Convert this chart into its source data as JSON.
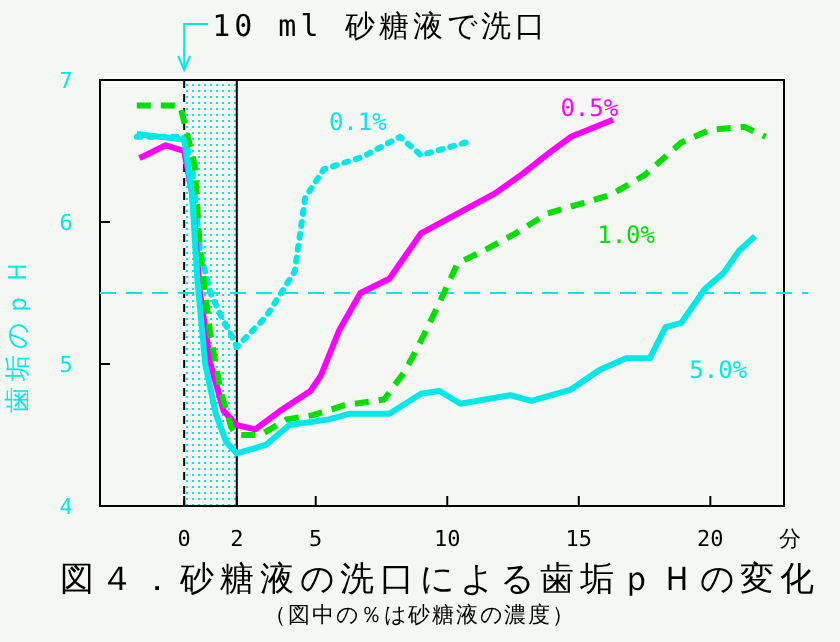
{
  "chart_data": {
    "type": "line",
    "title": "図４．砂糖液の洗口による歯垢ｐＨの変化",
    "subtitle": "（図中の％は砂糖液の濃度）",
    "xlabel": "分",
    "ylabel": "歯垢のｐＨ",
    "xlim": [
      -3.2,
      22.8
    ],
    "ylim": [
      4,
      7
    ],
    "xticks": [
      0,
      2,
      5,
      10,
      15,
      20
    ],
    "yticks": [
      4,
      5,
      6,
      7
    ],
    "grid": false,
    "annotations": [
      {
        "text": "10 ml 砂糖液で洗口",
        "x": 0,
        "y": 7
      }
    ],
    "bands": [
      {
        "axis": "x",
        "from": 0,
        "to": 2,
        "color": "#00e8e8"
      }
    ],
    "ref_lines": [
      {
        "axis": "x",
        "value": 0,
        "color": "#000000",
        "line_style": "dashed"
      },
      {
        "axis": "x",
        "value": 2,
        "color": "#000000",
        "line_style": "solid"
      },
      {
        "axis": "y",
        "value": 5.5,
        "color": "#00e8e8",
        "line_style": "dashed"
      }
    ],
    "series": [
      {
        "name": "0.1%",
        "color": "#00e8e8",
        "line_style": "dotted",
        "x": [
          -1.8,
          0,
          0.3,
          0.6,
          1.0,
          1.5,
          1.75,
          2,
          3.1,
          4.2,
          4.6,
          5.3,
          6.8,
          8.2,
          9.0,
          10.7
        ],
        "values": [
          6.6,
          6.6,
          6.4,
          5.8,
          5.5,
          5.3,
          5.22,
          5.12,
          5.33,
          5.65,
          6.17,
          6.37,
          6.46,
          6.6,
          6.47,
          6.56
        ]
      },
      {
        "name": "0.5%",
        "color": "#ff00ff",
        "line_style": "solid",
        "x": [
          -1.7,
          -0.7,
          0,
          0.3,
          0.6,
          1.0,
          1.5,
          2,
          2.7,
          3.65,
          4.8,
          5.2,
          5.9,
          6.7,
          7.8,
          9.0,
          10.9,
          11.8,
          12.8,
          13.9,
          14.7,
          16.3
        ],
        "values": [
          6.45,
          6.54,
          6.5,
          6.2,
          5.5,
          5.0,
          4.67,
          4.57,
          4.54,
          4.67,
          4.81,
          4.92,
          5.24,
          5.5,
          5.6,
          5.92,
          6.11,
          6.2,
          6.33,
          6.49,
          6.6,
          6.72
        ]
      },
      {
        "name": "1.0%",
        "color": "#00e000",
        "line_style": "dashed",
        "x": [
          -1.8,
          -0.15,
          0.4,
          0.6,
          1.0,
          1.4,
          1.8,
          2.0,
          2.9,
          3.9,
          4.9,
          6.1,
          7.6,
          8.4,
          9.1,
          9.7,
          10.4,
          11.3,
          12.6,
          13.8,
          16.2,
          17.5,
          18.9,
          20.0,
          21.3,
          22.1
        ],
        "values": [
          6.82,
          6.82,
          6.4,
          5.8,
          5.2,
          4.8,
          4.55,
          4.5,
          4.5,
          4.61,
          4.64,
          4.71,
          4.75,
          4.95,
          5.2,
          5.43,
          5.71,
          5.79,
          5.92,
          6.06,
          6.19,
          6.33,
          6.56,
          6.65,
          6.67,
          6.6
        ]
      },
      {
        "name": "5.0%",
        "color": "#00e8e8",
        "line_style": "solid",
        "x": [
          -1.8,
          0,
          0.3,
          0.5,
          0.8,
          1.2,
          1.6,
          2.0,
          3.1,
          4.0,
          5.5,
          6.3,
          7.8,
          9.0,
          9.7,
          10.5,
          12.4,
          13.2,
          14.7,
          15.8,
          16.8,
          17.7,
          18.3,
          18.9,
          19.8,
          20.5,
          21.1,
          21.7
        ],
        "values": [
          6.62,
          6.58,
          6.2,
          5.6,
          5.0,
          4.65,
          4.45,
          4.37,
          4.43,
          4.57,
          4.61,
          4.65,
          4.65,
          4.79,
          4.81,
          4.72,
          4.78,
          4.74,
          4.82,
          4.96,
          5.04,
          5.04,
          5.26,
          5.29,
          5.53,
          5.64,
          5.8,
          5.9
        ]
      }
    ]
  }
}
